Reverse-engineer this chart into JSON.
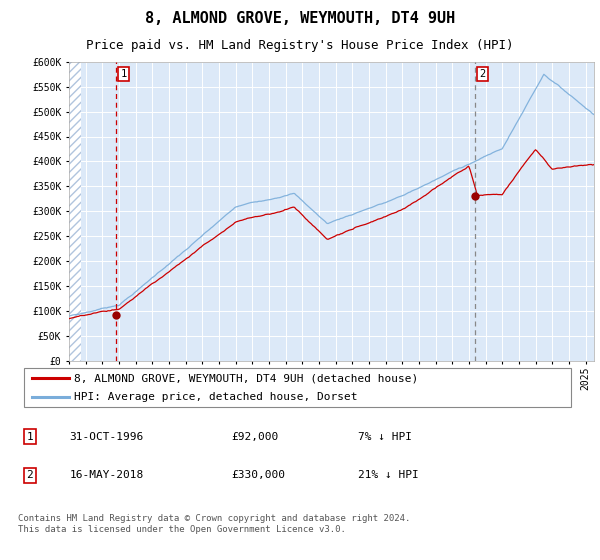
{
  "title": "8, ALMOND GROVE, WEYMOUTH, DT4 9UH",
  "subtitle": "Price paid vs. HM Land Registry's House Price Index (HPI)",
  "ylim": [
    0,
    600000
  ],
  "yticks": [
    0,
    50000,
    100000,
    150000,
    200000,
    250000,
    300000,
    350000,
    400000,
    450000,
    500000,
    550000,
    600000
  ],
  "ytick_labels": [
    "£0",
    "£50K",
    "£100K",
    "£150K",
    "£200K",
    "£250K",
    "£300K",
    "£350K",
    "£400K",
    "£450K",
    "£500K",
    "£550K",
    "£600K"
  ],
  "background_color": "#dce9f8",
  "red_line_color": "#cc0000",
  "blue_line_color": "#7aadda",
  "marker_color": "#990000",
  "vline1_color": "#cc0000",
  "vline2_color": "#888888",
  "sale1_date": 1996.83,
  "sale1_price": 92000,
  "sale2_date": 2018.37,
  "sale2_price": 330000,
  "xmin": 1994.0,
  "xmax": 2025.5,
  "legend1": "8, ALMOND GROVE, WEYMOUTH, DT4 9UH (detached house)",
  "legend2": "HPI: Average price, detached house, Dorset",
  "note1_label": "1",
  "note1_date": "31-OCT-1996",
  "note1_price": "£92,000",
  "note1_pct": "7% ↓ HPI",
  "note2_label": "2",
  "note2_date": "16-MAY-2018",
  "note2_price": "£330,000",
  "note2_pct": "21% ↓ HPI",
  "footer": "Contains HM Land Registry data © Crown copyright and database right 2024.\nThis data is licensed under the Open Government Licence v3.0.",
  "title_fontsize": 11,
  "subtitle_fontsize": 9,
  "tick_fontsize": 7,
  "legend_fontsize": 8,
  "note_fontsize": 8,
  "footer_fontsize": 6.5
}
